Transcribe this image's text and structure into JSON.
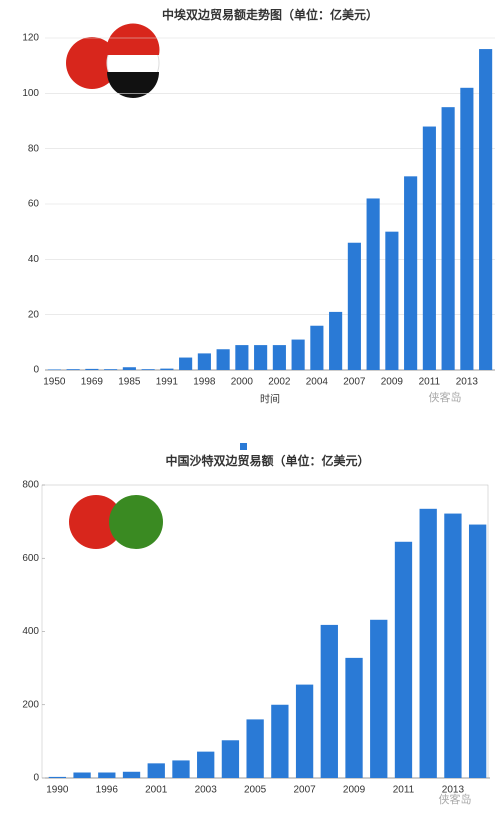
{
  "chart_data": [
    {
      "type": "bar",
      "title": "中埃双边贸易额走势图（单位：亿美元）",
      "x_label": "时间",
      "watermark": "侠客岛",
      "categories": [
        "1950",
        null,
        "1969",
        null,
        "1985",
        null,
        "1991",
        null,
        "1998",
        null,
        "2000",
        null,
        "2002",
        null,
        "2004",
        null,
        "2007",
        null,
        "2009",
        null,
        "2011",
        null,
        "2013",
        null
      ],
      "values": [
        0.2,
        0.3,
        0.4,
        0.3,
        1,
        0.3,
        0.5,
        4.5,
        6,
        7.5,
        9,
        9,
        9,
        11,
        16,
        21,
        46,
        62,
        50,
        70,
        88,
        95,
        102,
        116
      ],
      "color": "#2a7ad6",
      "ylim": [
        0,
        120
      ],
      "yticks": [
        0,
        20,
        40,
        60,
        80,
        100,
        120
      ],
      "grid": true
    },
    {
      "type": "bar",
      "title": "中国沙特双边贸易额（单位：亿美元）",
      "watermark": "侠客岛",
      "categories": [
        "1990",
        null,
        "1996",
        null,
        "2001",
        null,
        "2003",
        null,
        "2005",
        null,
        "2007",
        null,
        "2009",
        null,
        "2011",
        null,
        "2013",
        null
      ],
      "values": [
        3,
        15,
        15,
        17,
        40,
        48,
        72,
        103,
        160,
        200,
        255,
        418,
        328,
        432,
        645,
        735,
        722,
        692
      ],
      "color": "#2a7ad6",
      "ylim": [
        0,
        800
      ],
      "yticks": [
        0,
        200,
        400,
        600,
        800
      ],
      "grid": false
    }
  ]
}
